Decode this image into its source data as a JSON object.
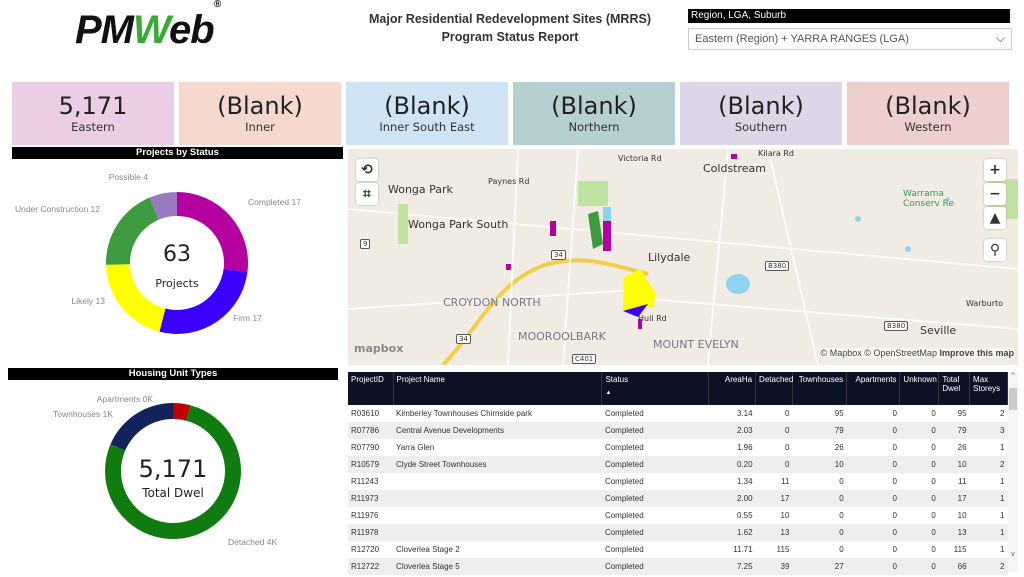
{
  "header": {
    "logo": "PMWeb",
    "title_line1": "Major Residential Redevelopment Sites (MRRS)",
    "title_line2": "Program Status Report",
    "slicer_label": "Region, LGA, Suburb",
    "slicer_value": "Eastern (Region) + YARRA RANGES (LGA)"
  },
  "cards": [
    {
      "value": "5,171",
      "label": "Eastern",
      "color": "#EBCDE6"
    },
    {
      "value": "(Blank)",
      "label": "Inner",
      "color": "#F5D9CF"
    },
    {
      "value": "(Blank)",
      "label": "Inner South East",
      "color": "#CFE4F5"
    },
    {
      "value": "(Blank)",
      "label": "Northern",
      "color": "#B6CFCF"
    },
    {
      "value": "(Blank)",
      "label": "Southern",
      "color": "#DDD6E9"
    },
    {
      "value": "(Blank)",
      "label": "Western",
      "color": "#EDCFCD"
    }
  ],
  "chart_data": [
    {
      "type": "pie",
      "title": "Projects by Status",
      "center_value": "63",
      "center_label": "Projects",
      "slices": [
        {
          "name": "Completed",
          "value": 17,
          "label": "Completed 17",
          "color": "#B4009E"
        },
        {
          "name": "Firm",
          "value": 17,
          "label": "Firm 17",
          "color": "#3A00FF"
        },
        {
          "name": "Likely",
          "value": 13,
          "label": "Likely 13",
          "color": "#FFFF00"
        },
        {
          "name": "Under Construction",
          "value": 12,
          "label": "Under Construction 12",
          "color": "#3F9B3F"
        },
        {
          "name": "Possible",
          "value": 4,
          "label": "Possible 4",
          "color": "#9B7BC0"
        }
      ]
    },
    {
      "type": "pie",
      "title": "Housing Unit Types",
      "center_value": "5,171",
      "center_label": "Total Dwel",
      "slices": [
        {
          "name": "Apartments",
          "value": 211,
          "label": "Apartments 0K",
          "color": "#C00000"
        },
        {
          "name": "Detached",
          "value": 4000,
          "label": "Detached 4K",
          "color": "#107C10"
        },
        {
          "name": "Townhouses",
          "value": 960,
          "label": "Townhouses 1K",
          "color": "#12235E"
        }
      ]
    }
  ],
  "map": {
    "labels": [
      "Wonga Park",
      "Wonga Park South",
      "Coldstream",
      "Lilydale",
      "CROYDON NORTH",
      "MOOROOLBARK",
      "MOUNT EVELYN",
      "Seville",
      "Paynes Rd",
      "Victoria Rd",
      "Hull Rd",
      "Kilara Rd",
      "Warburto",
      "Warrama Conserv Re"
    ],
    "shields": [
      "9",
      "34",
      "34",
      "B380",
      "B380",
      "C401"
    ],
    "attribution": "© Mapbox © OpenStreetMap",
    "improve": "Improve this map",
    "brand": "mapbox"
  },
  "table": {
    "columns": [
      "ProjectID",
      "Project Name",
      "Status",
      "AreaHa",
      "Detached",
      "Townhouses",
      "Apartments",
      "Unknown",
      "Total Dwel",
      "Max Storeys"
    ],
    "sort_indicator": "▲",
    "rows": [
      [
        "R03610",
        "Kimberley Townhouses Chirnside park",
        "Completed",
        "3.14",
        "0",
        "95",
        "0",
        "0",
        "95",
        "2"
      ],
      [
        "R07786",
        "Central Avenue Developments",
        "Completed",
        "2.03",
        "0",
        "79",
        "0",
        "0",
        "79",
        "3"
      ],
      [
        "R07790",
        "Yarra Glen",
        "Completed",
        "1.96",
        "0",
        "26",
        "0",
        "0",
        "26",
        "1"
      ],
      [
        "R10579",
        "Clyde Street Townhouses",
        "Completed",
        "0.20",
        "0",
        "10",
        "0",
        "0",
        "10",
        "2"
      ],
      [
        "R11243",
        "",
        "Completed",
        "1.34",
        "11",
        "0",
        "0",
        "0",
        "11",
        "1"
      ],
      [
        "R11973",
        "",
        "Completed",
        "2.00",
        "17",
        "0",
        "0",
        "0",
        "17",
        "1"
      ],
      [
        "R11976",
        "",
        "Completed",
        "0.55",
        "10",
        "0",
        "0",
        "0",
        "10",
        "1"
      ],
      [
        "R11978",
        "",
        "Completed",
        "1.62",
        "13",
        "0",
        "0",
        "0",
        "13",
        "1"
      ],
      [
        "R12720",
        "Cloverlea Stage 2",
        "Completed",
        "11.71",
        "115",
        "0",
        "0",
        "0",
        "115",
        "1"
      ],
      [
        "R12722",
        "Cloverlea Stage 5",
        "Completed",
        "7.25",
        "39",
        "27",
        "0",
        "0",
        "66",
        "2"
      ]
    ]
  }
}
